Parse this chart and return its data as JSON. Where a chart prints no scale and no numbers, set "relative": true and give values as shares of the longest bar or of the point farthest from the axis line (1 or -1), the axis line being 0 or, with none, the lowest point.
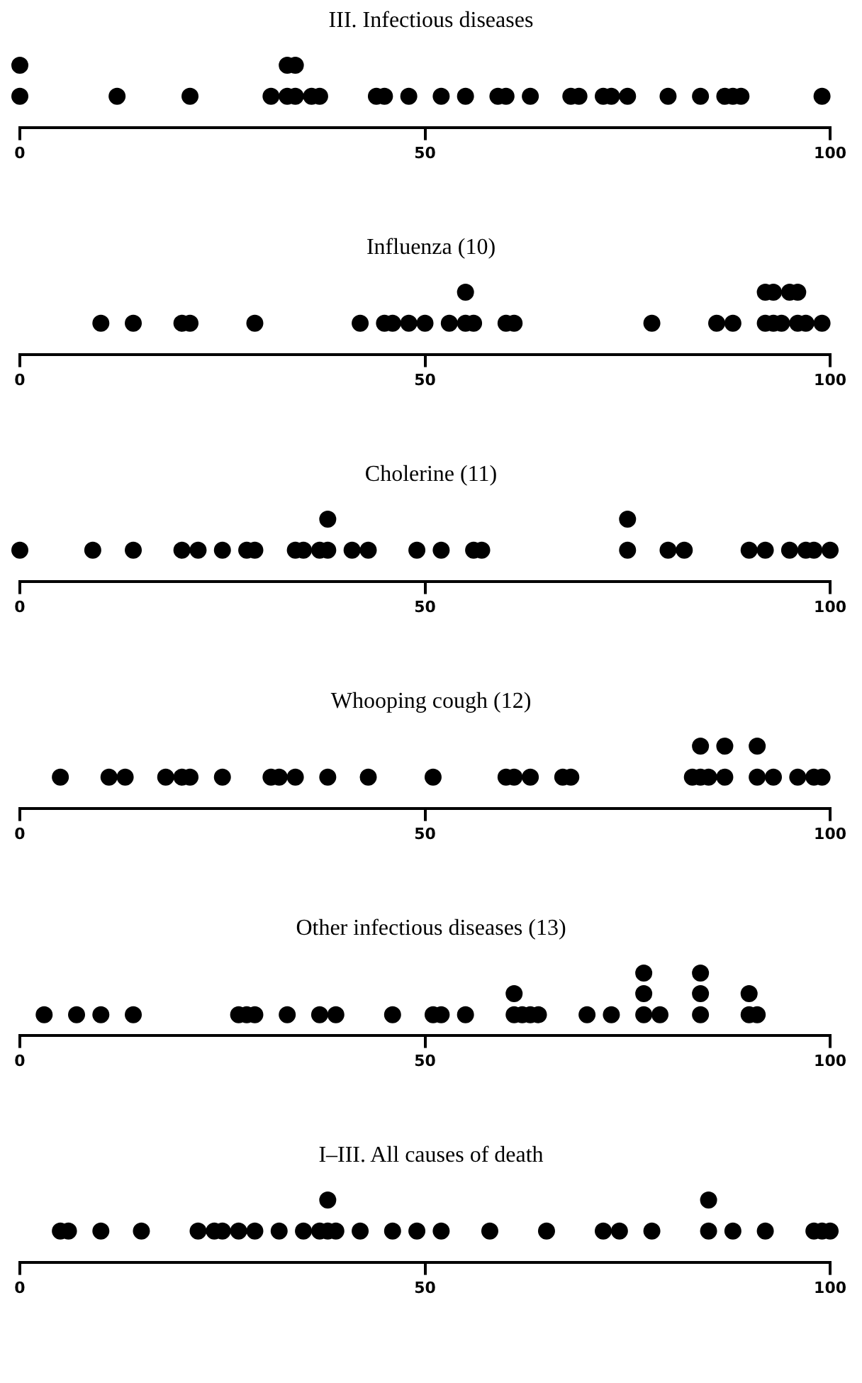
{
  "chart_data": [
    {
      "type": "scatter",
      "title": "III. Infectious diseases",
      "color": "#000000",
      "marker": "circle",
      "relative": true,
      "tick_labels": "x",
      "xlim": [
        0,
        100
      ],
      "xticks": [
        0,
        50,
        100
      ],
      "x": [
        0,
        0,
        12,
        21,
        31,
        33,
        33,
        34,
        34,
        36,
        37,
        44,
        45,
        48,
        52,
        55,
        59,
        60,
        63,
        68,
        69,
        72,
        73,
        75,
        80,
        84,
        87,
        88,
        89,
        99
      ],
      "values": [
        0.5,
        1,
        0.5,
        0.5,
        0.5,
        0.5,
        1,
        0.5,
        1,
        0.5,
        0.5,
        0.5,
        0.5,
        0.5,
        0.5,
        0.5,
        0.5,
        0.5,
        0.5,
        0.5,
        0.5,
        0.5,
        0.5,
        0.5,
        0.5,
        0.5,
        0.5,
        0.5,
        0.5,
        0.5
      ]
    },
    {
      "type": "scatter",
      "title": "Influenza (10)",
      "color": "#000000",
      "marker": "circle",
      "relative": true,
      "tick_labels": "x",
      "xlim": [
        0,
        100
      ],
      "xticks": [
        0,
        50,
        100
      ],
      "x": [
        10,
        14,
        20,
        21,
        29,
        42,
        45,
        46,
        48,
        50,
        53,
        55,
        55,
        56,
        60,
        61,
        78,
        86,
        88,
        92,
        92,
        93,
        93,
        94,
        95,
        96,
        96,
        97,
        99
      ],
      "values": [
        0.5,
        0.5,
        0.5,
        0.5,
        0.5,
        0.5,
        0.5,
        0.5,
        0.5,
        0.5,
        0.5,
        0.5,
        1,
        0.5,
        0.5,
        0.5,
        0.5,
        0.5,
        0.5,
        0.5,
        1,
        0.5,
        1,
        0.5,
        1,
        0.5,
        1,
        0.5,
        0.5
      ]
    },
    {
      "type": "scatter",
      "title": "Cholerine (11)",
      "color": "#000000",
      "marker": "circle",
      "relative": true,
      "tick_labels": "x",
      "xlim": [
        0,
        100
      ],
      "xticks": [
        0,
        50,
        100
      ],
      "x": [
        0,
        9,
        14,
        20,
        22,
        25,
        28,
        29,
        34,
        35,
        37,
        38,
        38,
        41,
        43,
        49,
        52,
        56,
        57,
        75,
        75,
        80,
        82,
        90,
        92,
        95,
        97,
        98,
        100
      ],
      "values": [
        0.5,
        0.5,
        0.5,
        0.5,
        0.5,
        0.5,
        0.5,
        0.5,
        0.5,
        0.5,
        0.5,
        0.5,
        1,
        0.5,
        0.5,
        0.5,
        0.5,
        0.5,
        0.5,
        0.5,
        1,
        0.5,
        0.5,
        0.5,
        0.5,
        0.5,
        0.5,
        0.5,
        0.5
      ]
    },
    {
      "type": "scatter",
      "title": "Whooping cough (12)",
      "color": "#000000",
      "marker": "circle",
      "relative": true,
      "tick_labels": "x",
      "xlim": [
        0,
        100
      ],
      "xticks": [
        0,
        50,
        100
      ],
      "x": [
        5,
        11,
        13,
        18,
        20,
        21,
        25,
        31,
        32,
        34,
        38,
        43,
        51,
        60,
        61,
        63,
        67,
        68,
        83,
        84,
        84,
        85,
        87,
        87,
        91,
        91,
        93,
        96,
        98,
        99
      ],
      "values": [
        0.5,
        0.5,
        0.5,
        0.5,
        0.5,
        0.5,
        0.5,
        0.5,
        0.5,
        0.5,
        0.5,
        0.5,
        0.5,
        0.5,
        0.5,
        0.5,
        0.5,
        0.5,
        0.5,
        0.5,
        1,
        0.5,
        0.5,
        1,
        0.5,
        1,
        0.5,
        0.5,
        0.5,
        0.5
      ]
    },
    {
      "type": "scatter",
      "title": "Other infectious diseases (13)",
      "color": "#000000",
      "marker": "circle",
      "relative": true,
      "tick_labels": "x",
      "xlim": [
        0,
        100
      ],
      "xticks": [
        0,
        50,
        100
      ],
      "x": [
        3,
        7,
        10,
        14,
        27,
        28,
        29,
        33,
        37,
        39,
        46,
        51,
        52,
        55,
        61,
        61,
        62,
        63,
        64,
        70,
        73,
        77,
        77,
        77,
        79,
        84,
        84,
        84,
        90,
        90,
        91
      ],
      "values": [
        0.33,
        0.33,
        0.33,
        0.33,
        0.33,
        0.33,
        0.33,
        0.33,
        0.33,
        0.33,
        0.33,
        0.33,
        0.33,
        0.33,
        0.33,
        0.67,
        0.33,
        0.33,
        0.33,
        0.33,
        0.33,
        0.33,
        0.67,
        1,
        0.33,
        0.33,
        0.67,
        1,
        0.33,
        0.67,
        0.33
      ]
    },
    {
      "type": "scatter",
      "title": "I–III. All causes of death",
      "color": "#000000",
      "marker": "circle",
      "relative": true,
      "tick_labels": "x",
      "xlim": [
        0,
        100
      ],
      "xticks": [
        0,
        50,
        100
      ],
      "x": [
        5,
        6,
        10,
        15,
        22,
        24,
        25,
        27,
        29,
        32,
        35,
        37,
        38,
        38,
        39,
        42,
        46,
        49,
        52,
        58,
        65,
        72,
        74,
        78,
        85,
        85,
        88,
        92,
        98,
        99,
        100
      ],
      "values": [
        0.5,
        0.5,
        0.5,
        0.5,
        0.5,
        0.5,
        0.5,
        0.5,
        0.5,
        0.5,
        0.5,
        0.5,
        0.5,
        1,
        0.5,
        0.5,
        0.5,
        0.5,
        0.5,
        0.5,
        0.5,
        0.5,
        0.5,
        0.5,
        0.5,
        1,
        0.5,
        0.5,
        0.5,
        0.5,
        0.5
      ]
    }
  ]
}
